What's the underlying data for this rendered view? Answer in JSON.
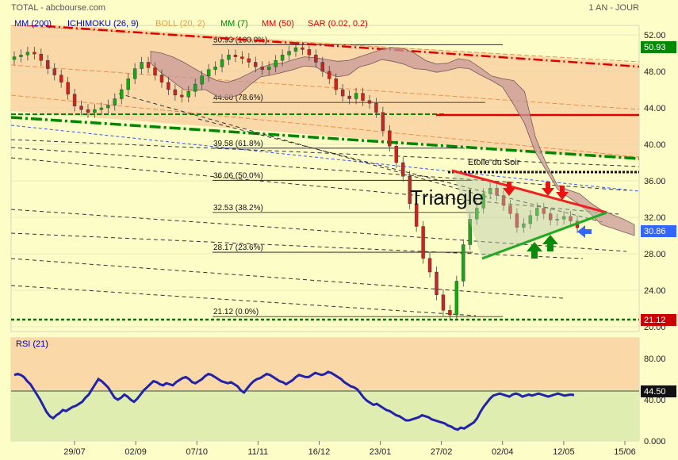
{
  "header": {
    "source": "TOTAL - abcbourse.com",
    "period": "1 AN - JOUR",
    "indicators": [
      {
        "label": "MM (200)",
        "color": "#0000cc"
      },
      {
        "label": "ICHIMOKU (26, 9)",
        "color": "#0000cc"
      },
      {
        "label": "BOLL (20, 2)",
        "color": "#e8a040"
      },
      {
        "label": "MM (7)",
        "color": "#008800"
      },
      {
        "label": "MM (50)",
        "color": "#dd0000"
      },
      {
        "label": "SAR (0.02, 0.2)",
        "color": "#dd0000"
      }
    ]
  },
  "chart_data": [
    {
      "type": "line",
      "panel": "price",
      "ylim": [
        20,
        53
      ],
      "y_ticks": [
        "52.00",
        "48.00",
        "44.00",
        "40.00",
        "36.00",
        "32.00",
        "28.00",
        "24.00",
        "20.00"
      ],
      "x_ticks": [
        "29/07",
        "02/09",
        "07/10",
        "11/11",
        "16/12",
        "23/01",
        "27/02",
        "02/04",
        "12/05",
        "15/06"
      ],
      "price_labels": [
        {
          "value": "50.93",
          "color": "#008800"
        },
        {
          "value": "30.86",
          "color": "#3366ff"
        },
        {
          "value": "21.12",
          "color": "#cc0000"
        }
      ],
      "fibonacci": [
        {
          "price": 50.93,
          "label": "50.93   (100.0%)"
        },
        {
          "price": 44.6,
          "label": "44.60   (78.6%)"
        },
        {
          "price": 39.58,
          "label": "39.58   (61.8%)"
        },
        {
          "price": 36.06,
          "label": "36.06   (50.0%)"
        },
        {
          "price": 32.53,
          "label": "32.53   (38.2%)"
        },
        {
          "price": 28.17,
          "label": "28.17   (23.6%)"
        },
        {
          "price": 21.12,
          "label": "21.12   (0.0%)"
        }
      ],
      "annotations": {
        "triangle": "Triangle",
        "evening_star": "Etoile du Soir"
      },
      "close_series": [
        49.6,
        49.8,
        50.1,
        49.9,
        49.2,
        48.3,
        47.6,
        46.8,
        45.5,
        44.2,
        43.8,
        43.5,
        43.8,
        44.0,
        44.3,
        45.0,
        46.0,
        47.2,
        48.3,
        49.0,
        48.4,
        47.6,
        46.8,
        46.0,
        45.4,
        45.2,
        45.8,
        46.6,
        47.5,
        48.2,
        48.5,
        49.3,
        49.8,
        49.6,
        49.4,
        49.0,
        48.5,
        48.2,
        48.5,
        49.2,
        49.8,
        50.2,
        50.6,
        50.4,
        49.8,
        49.0,
        48.0,
        47.2,
        46.0,
        45.3,
        45.0,
        45.6,
        44.8,
        44.5,
        43.5,
        41.5,
        39.8,
        38.0,
        36.5,
        33.5,
        31.0,
        27.5,
        26.0,
        23.5,
        21.8,
        21.3,
        25.0,
        29.0,
        31.8,
        33.0,
        34.6,
        35.2,
        34.4,
        33.3,
        32.4,
        30.9,
        31.3,
        32.2,
        33.0,
        32.4,
        31.7,
        31.8,
        32.1,
        31.6,
        30.86
      ],
      "ichimoku_upper": [
        50.2,
        50.0,
        49.6,
        49.0,
        48.3,
        47.6,
        47.0,
        46.8,
        47.2,
        47.8,
        48.4,
        48.8,
        48.9,
        49.3,
        49.6,
        49.5,
        49.3,
        49.1,
        49.2,
        49.6,
        50.0,
        50.4,
        50.6,
        50.5,
        50.0,
        49.2,
        48.8,
        48.9,
        49.4,
        49.2,
        48.4,
        47.5,
        47.2,
        47.0,
        45.8,
        40.8,
        37.8,
        35.5,
        35.0,
        34.6,
        33.6,
        32.8,
        32.3,
        31.8,
        31.2
      ],
      "ichimoku_lower": [
        48.9,
        47.8,
        46.9,
        46.0,
        45.9,
        46.0,
        45.3,
        45.1,
        45.4,
        46.5,
        47.4,
        47.6,
        47.9,
        48.2,
        48.6,
        48.5,
        47.8,
        47.4,
        47.6,
        48.5,
        48.8,
        49.3,
        49.1,
        48.8,
        48.3,
        48.2,
        47.9,
        48.1,
        48.4,
        48.3,
        47.6,
        47.0,
        46.3,
        44.4,
        42.3,
        39.1,
        37.1,
        35.1,
        34.2,
        33.4,
        32.4,
        31.2,
        30.8,
        30.4,
        30.0
      ]
    },
    {
      "type": "line",
      "panel": "rsi",
      "title": "RSI (21)",
      "ylim": [
        0,
        100
      ],
      "y_ticks": [
        "80.00",
        "40.00",
        "0.000"
      ],
      "current_label": "44.50",
      "values": [
        64,
        65,
        64,
        62,
        58,
        55,
        50,
        45,
        40,
        34,
        28,
        24,
        22,
        25,
        27,
        30,
        29,
        31,
        33,
        34,
        36,
        38,
        42,
        45,
        50,
        55,
        60,
        58,
        55,
        52,
        47,
        42,
        40,
        42,
        45,
        43,
        40,
        38,
        41,
        45,
        49,
        52,
        55,
        58,
        57,
        55,
        54,
        56,
        55,
        54,
        57,
        59,
        61,
        62,
        60,
        57,
        56,
        58,
        60,
        63,
        65,
        64,
        62,
        60,
        58,
        57,
        56,
        57,
        55,
        53,
        49,
        47,
        51,
        55,
        58,
        60,
        61,
        63,
        65,
        64,
        62,
        60,
        58,
        57,
        55,
        57,
        59,
        62,
        64,
        63,
        62,
        62,
        64,
        66,
        65,
        64,
        65,
        67,
        66,
        64,
        62,
        60,
        57,
        55,
        53,
        52,
        50,
        46,
        42,
        39,
        37,
        35,
        36,
        34,
        32,
        30,
        29,
        27,
        25,
        24,
        22,
        20,
        20,
        21,
        22,
        23,
        25,
        24,
        23,
        21,
        20,
        19,
        18,
        17,
        15,
        14,
        12,
        11,
        13,
        12,
        14,
        16,
        18,
        22,
        28,
        33,
        37,
        41,
        44,
        45,
        46,
        45,
        44,
        43,
        45,
        46,
        45,
        43,
        44,
        45,
        44,
        45,
        46,
        45,
        44,
        43,
        44,
        45,
        46,
        45,
        44,
        44.5,
        45,
        44.5
      ]
    }
  ]
}
